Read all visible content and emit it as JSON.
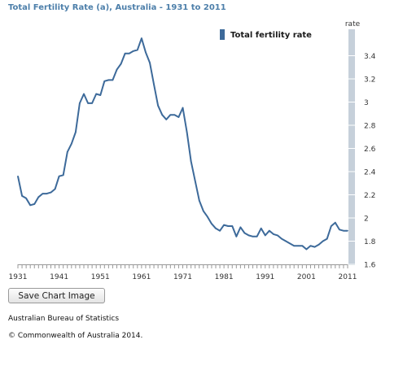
{
  "chart_data": {
    "type": "line",
    "title": "Total Fertility Rate (a), Australia - 1931 to 2011",
    "ylabel": "rate",
    "xlim": [
      1931,
      2011
    ],
    "ylim": [
      1.6,
      3.6
    ],
    "x_tick_labels": [
      "1931",
      "1941",
      "1951",
      "1961",
      "1971",
      "1981",
      "1991",
      "2001",
      "2011"
    ],
    "y_tick_labels": [
      "1.6",
      "1.8",
      "2",
      "2.2",
      "2.4",
      "2.6",
      "2.8",
      "3",
      "3.2",
      "3.4"
    ],
    "legend": "top-right",
    "grid": false,
    "colors": {
      "line": "#3d6a9a",
      "title": "#4d7faa",
      "axis_band": "#c6d0da"
    },
    "series": [
      {
        "name": "Total fertility rate",
        "x": [
          1931,
          1932,
          1933,
          1934,
          1935,
          1936,
          1937,
          1938,
          1939,
          1940,
          1941,
          1942,
          1943,
          1944,
          1945,
          1946,
          1947,
          1948,
          1949,
          1950,
          1951,
          1952,
          1953,
          1954,
          1955,
          1956,
          1957,
          1958,
          1959,
          1960,
          1961,
          1962,
          1963,
          1964,
          1965,
          1966,
          1967,
          1968,
          1969,
          1970,
          1971,
          1972,
          1973,
          1974,
          1975,
          1976,
          1977,
          1978,
          1979,
          1980,
          1981,
          1982,
          1983,
          1984,
          1985,
          1986,
          1987,
          1988,
          1989,
          1990,
          1991,
          1992,
          1993,
          1994,
          1995,
          1996,
          1997,
          1998,
          1999,
          2000,
          2001,
          2002,
          2003,
          2004,
          2005,
          2006,
          2007,
          2008,
          2009,
          2010,
          2011
        ],
        "values": [
          2.36,
          2.19,
          2.17,
          2.11,
          2.12,
          2.18,
          2.21,
          2.21,
          2.22,
          2.25,
          2.36,
          2.37,
          2.57,
          2.64,
          2.74,
          2.99,
          3.07,
          2.99,
          2.99,
          3.07,
          3.06,
          3.18,
          3.19,
          3.19,
          3.28,
          3.33,
          3.42,
          3.42,
          3.44,
          3.45,
          3.55,
          3.43,
          3.34,
          3.15,
          2.97,
          2.89,
          2.85,
          2.89,
          2.89,
          2.87,
          2.95,
          2.74,
          2.49,
          2.32,
          2.15,
          2.06,
          2.01,
          1.95,
          1.91,
          1.89,
          1.94,
          1.93,
          1.93,
          1.84,
          1.92,
          1.87,
          1.85,
          1.84,
          1.84,
          1.91,
          1.85,
          1.89,
          1.86,
          1.85,
          1.82,
          1.8,
          1.78,
          1.76,
          1.76,
          1.76,
          1.73,
          1.76,
          1.75,
          1.77,
          1.8,
          1.82,
          1.93,
          1.96,
          1.9,
          1.89,
          1.89
        ]
      }
    ]
  },
  "controls": {
    "save_label": "Save Chart Image"
  },
  "footer": {
    "source": "Australian Bureau of Statistics",
    "copyright": "© Commonwealth of Australia 2014."
  }
}
